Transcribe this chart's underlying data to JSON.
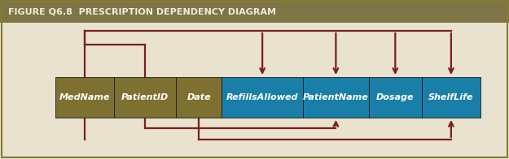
{
  "title": "FIGURE Q6.8  PRESCRIPTION DEPENDENCY DIAGRAM",
  "title_bg": "#7d7545",
  "title_color": "#f0ece0",
  "background_color": "#e8e2ce",
  "gold_color": "#7d7030",
  "teal_color": "#1a7fa8",
  "arrow_color": "#7a2020",
  "text_color": "#ffffff",
  "gold_fields": [
    "MedName",
    "PatientID",
    "Date"
  ],
  "teal_fields": [
    "RefillsAllowed",
    "PatientName",
    "Dosage",
    "ShelfLife"
  ],
  "lw": 1.6
}
